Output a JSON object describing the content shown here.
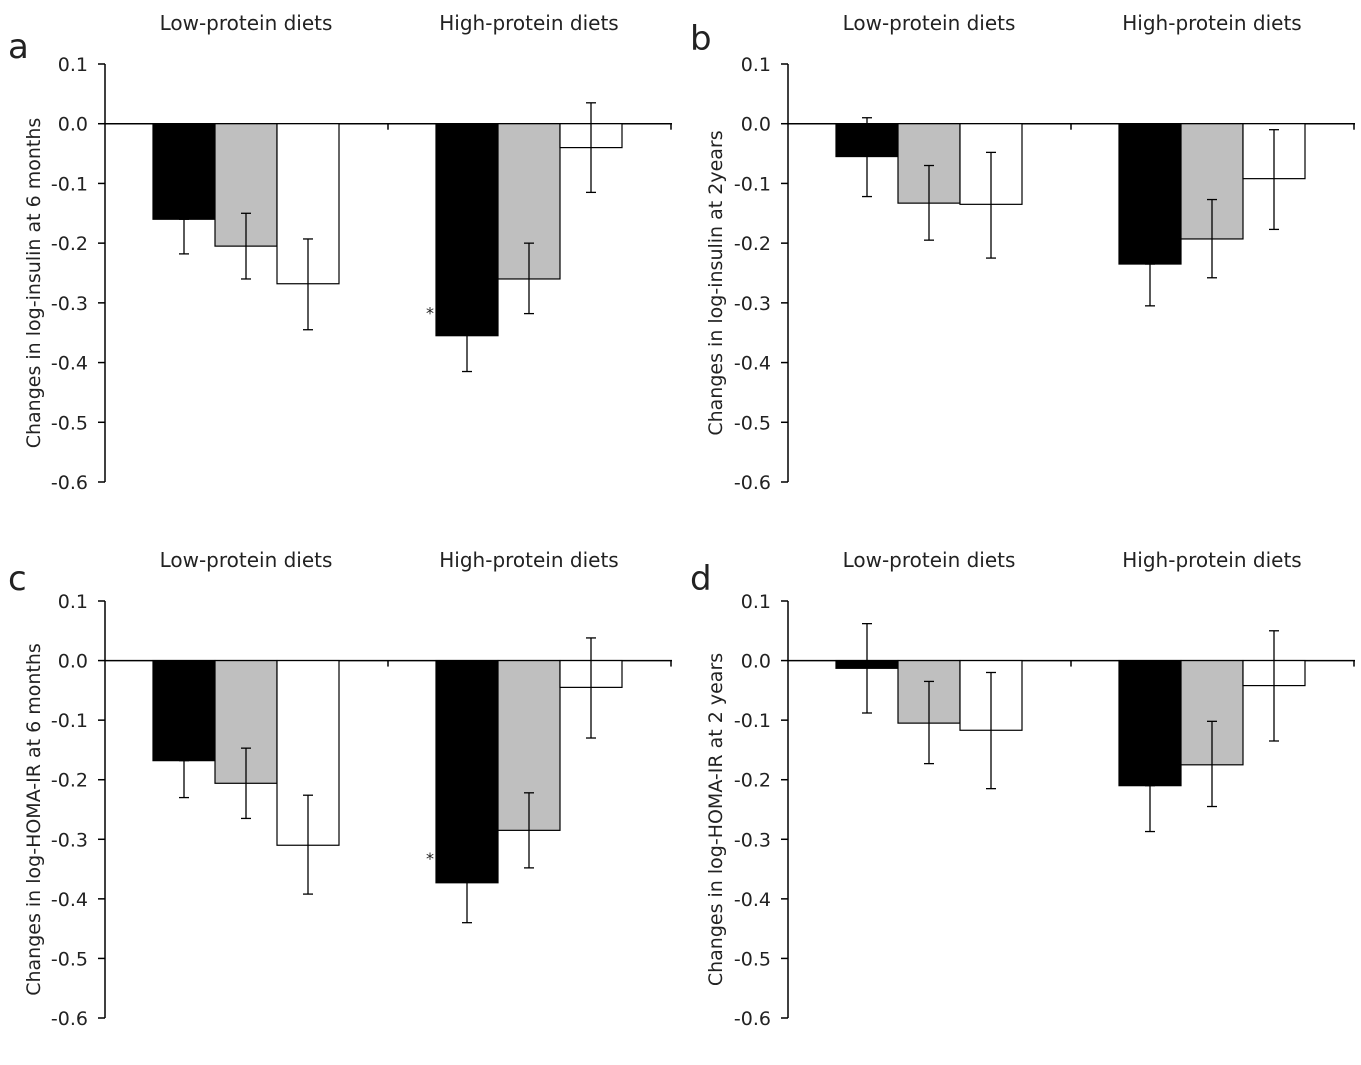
{
  "chart_data": [
    {
      "panel_label": "a",
      "type": "bar",
      "ylabel": "Changes in log-insulin at 6 months",
      "ylim": [
        -0.6,
        0.1
      ],
      "yticks": [
        "0.1",
        "0.0",
        "-0.1",
        "-0.2",
        "-0.3",
        "-0.4",
        "-0.5",
        "-0.6"
      ],
      "categories": [
        "Low-protein diets",
        "High-protein diets"
      ],
      "bar_colors": [
        "#000000",
        "#bfbfbf",
        "#ffffff"
      ],
      "series": [
        {
          "values": [
            -0.16,
            -0.355
          ],
          "err_low": [
            -0.218,
            -0.415
          ],
          "err_high": [
            -0.16,
            -0.3
          ],
          "marker": [
            "",
            "*"
          ]
        },
        {
          "values": [
            -0.205,
            -0.26
          ],
          "err_low": [
            -0.26,
            -0.318
          ],
          "err_high": [
            -0.15,
            -0.2
          ],
          "marker": [
            "",
            ""
          ]
        },
        {
          "values": [
            -0.268,
            -0.04
          ],
          "err_low": [
            -0.345,
            -0.115
          ],
          "err_high": [
            -0.193,
            0.035
          ],
          "marker": [
            "",
            ""
          ]
        }
      ]
    },
    {
      "panel_label": "b",
      "type": "bar",
      "ylabel": "Changes in log-insulin at 2years",
      "ylim": [
        -0.6,
        0.1
      ],
      "yticks": [
        "0.1",
        "0.0",
        "-0.1",
        "-0.2",
        "-0.3",
        "-0.4",
        "-0.5",
        "-0.6"
      ],
      "categories": [
        "Low-protein diets",
        "High-protein diets"
      ],
      "bar_colors": [
        "#000000",
        "#bfbfbf",
        "#ffffff"
      ],
      "series": [
        {
          "values": [
            -0.055,
            -0.235
          ],
          "err_low": [
            -0.122,
            -0.305
          ],
          "err_high": [
            0.01,
            -0.235
          ],
          "marker": [
            "",
            ""
          ]
        },
        {
          "values": [
            -0.133,
            -0.193
          ],
          "err_low": [
            -0.195,
            -0.258
          ],
          "err_high": [
            -0.07,
            -0.127
          ],
          "marker": [
            "",
            ""
          ]
        },
        {
          "values": [
            -0.135,
            -0.092
          ],
          "err_low": [
            -0.225,
            -0.177
          ],
          "err_high": [
            -0.048,
            -0.01
          ],
          "marker": [
            "",
            ""
          ]
        }
      ]
    },
    {
      "panel_label": "c",
      "type": "bar",
      "ylabel": "Changes in log-HOMA-IR at 6 months",
      "ylim": [
        -0.6,
        0.1
      ],
      "yticks": [
        "0.1",
        "0.0",
        "-0.1",
        "-0.2",
        "-0.3",
        "-0.4",
        "-0.5",
        "-0.6"
      ],
      "categories": [
        "Low-protein diets",
        "High-protein diets"
      ],
      "bar_colors": [
        "#000000",
        "#bfbfbf",
        "#ffffff"
      ],
      "series": [
        {
          "values": [
            -0.168,
            -0.373
          ],
          "err_low": [
            -0.23,
            -0.44
          ],
          "err_high": [
            -0.168,
            -0.31
          ],
          "marker": [
            "",
            "*"
          ]
        },
        {
          "values": [
            -0.206,
            -0.285
          ],
          "err_low": [
            -0.265,
            -0.348
          ],
          "err_high": [
            -0.147,
            -0.222
          ],
          "marker": [
            "",
            ""
          ]
        },
        {
          "values": [
            -0.31,
            -0.045
          ],
          "err_low": [
            -0.392,
            -0.13
          ],
          "err_high": [
            -0.226,
            0.038
          ],
          "marker": [
            "",
            ""
          ]
        }
      ]
    },
    {
      "panel_label": "d",
      "type": "bar",
      "ylabel": "Changes in log-HOMA-IR at 2 years",
      "ylim": [
        -0.6,
        0.1
      ],
      "yticks": [
        "0.1",
        "0.0",
        "-0.1",
        "-0.2",
        "-0.3",
        "-0.4",
        "-0.5",
        "-0.6"
      ],
      "categories": [
        "Low-protein diets",
        "High-protein diets"
      ],
      "bar_colors": [
        "#000000",
        "#bfbfbf",
        "#ffffff"
      ],
      "series": [
        {
          "values": [
            -0.013,
            -0.21
          ],
          "err_low": [
            -0.088,
            -0.287
          ],
          "err_high": [
            0.062,
            -0.21
          ],
          "marker": [
            "",
            ""
          ]
        },
        {
          "values": [
            -0.105,
            -0.175
          ],
          "err_low": [
            -0.173,
            -0.245
          ],
          "err_high": [
            -0.035,
            -0.102
          ],
          "marker": [
            "",
            ""
          ]
        },
        {
          "values": [
            -0.117,
            -0.042
          ],
          "err_low": [
            -0.215,
            -0.135
          ],
          "err_high": [
            -0.02,
            0.05
          ],
          "marker": [
            "",
            ""
          ]
        }
      ]
    }
  ]
}
